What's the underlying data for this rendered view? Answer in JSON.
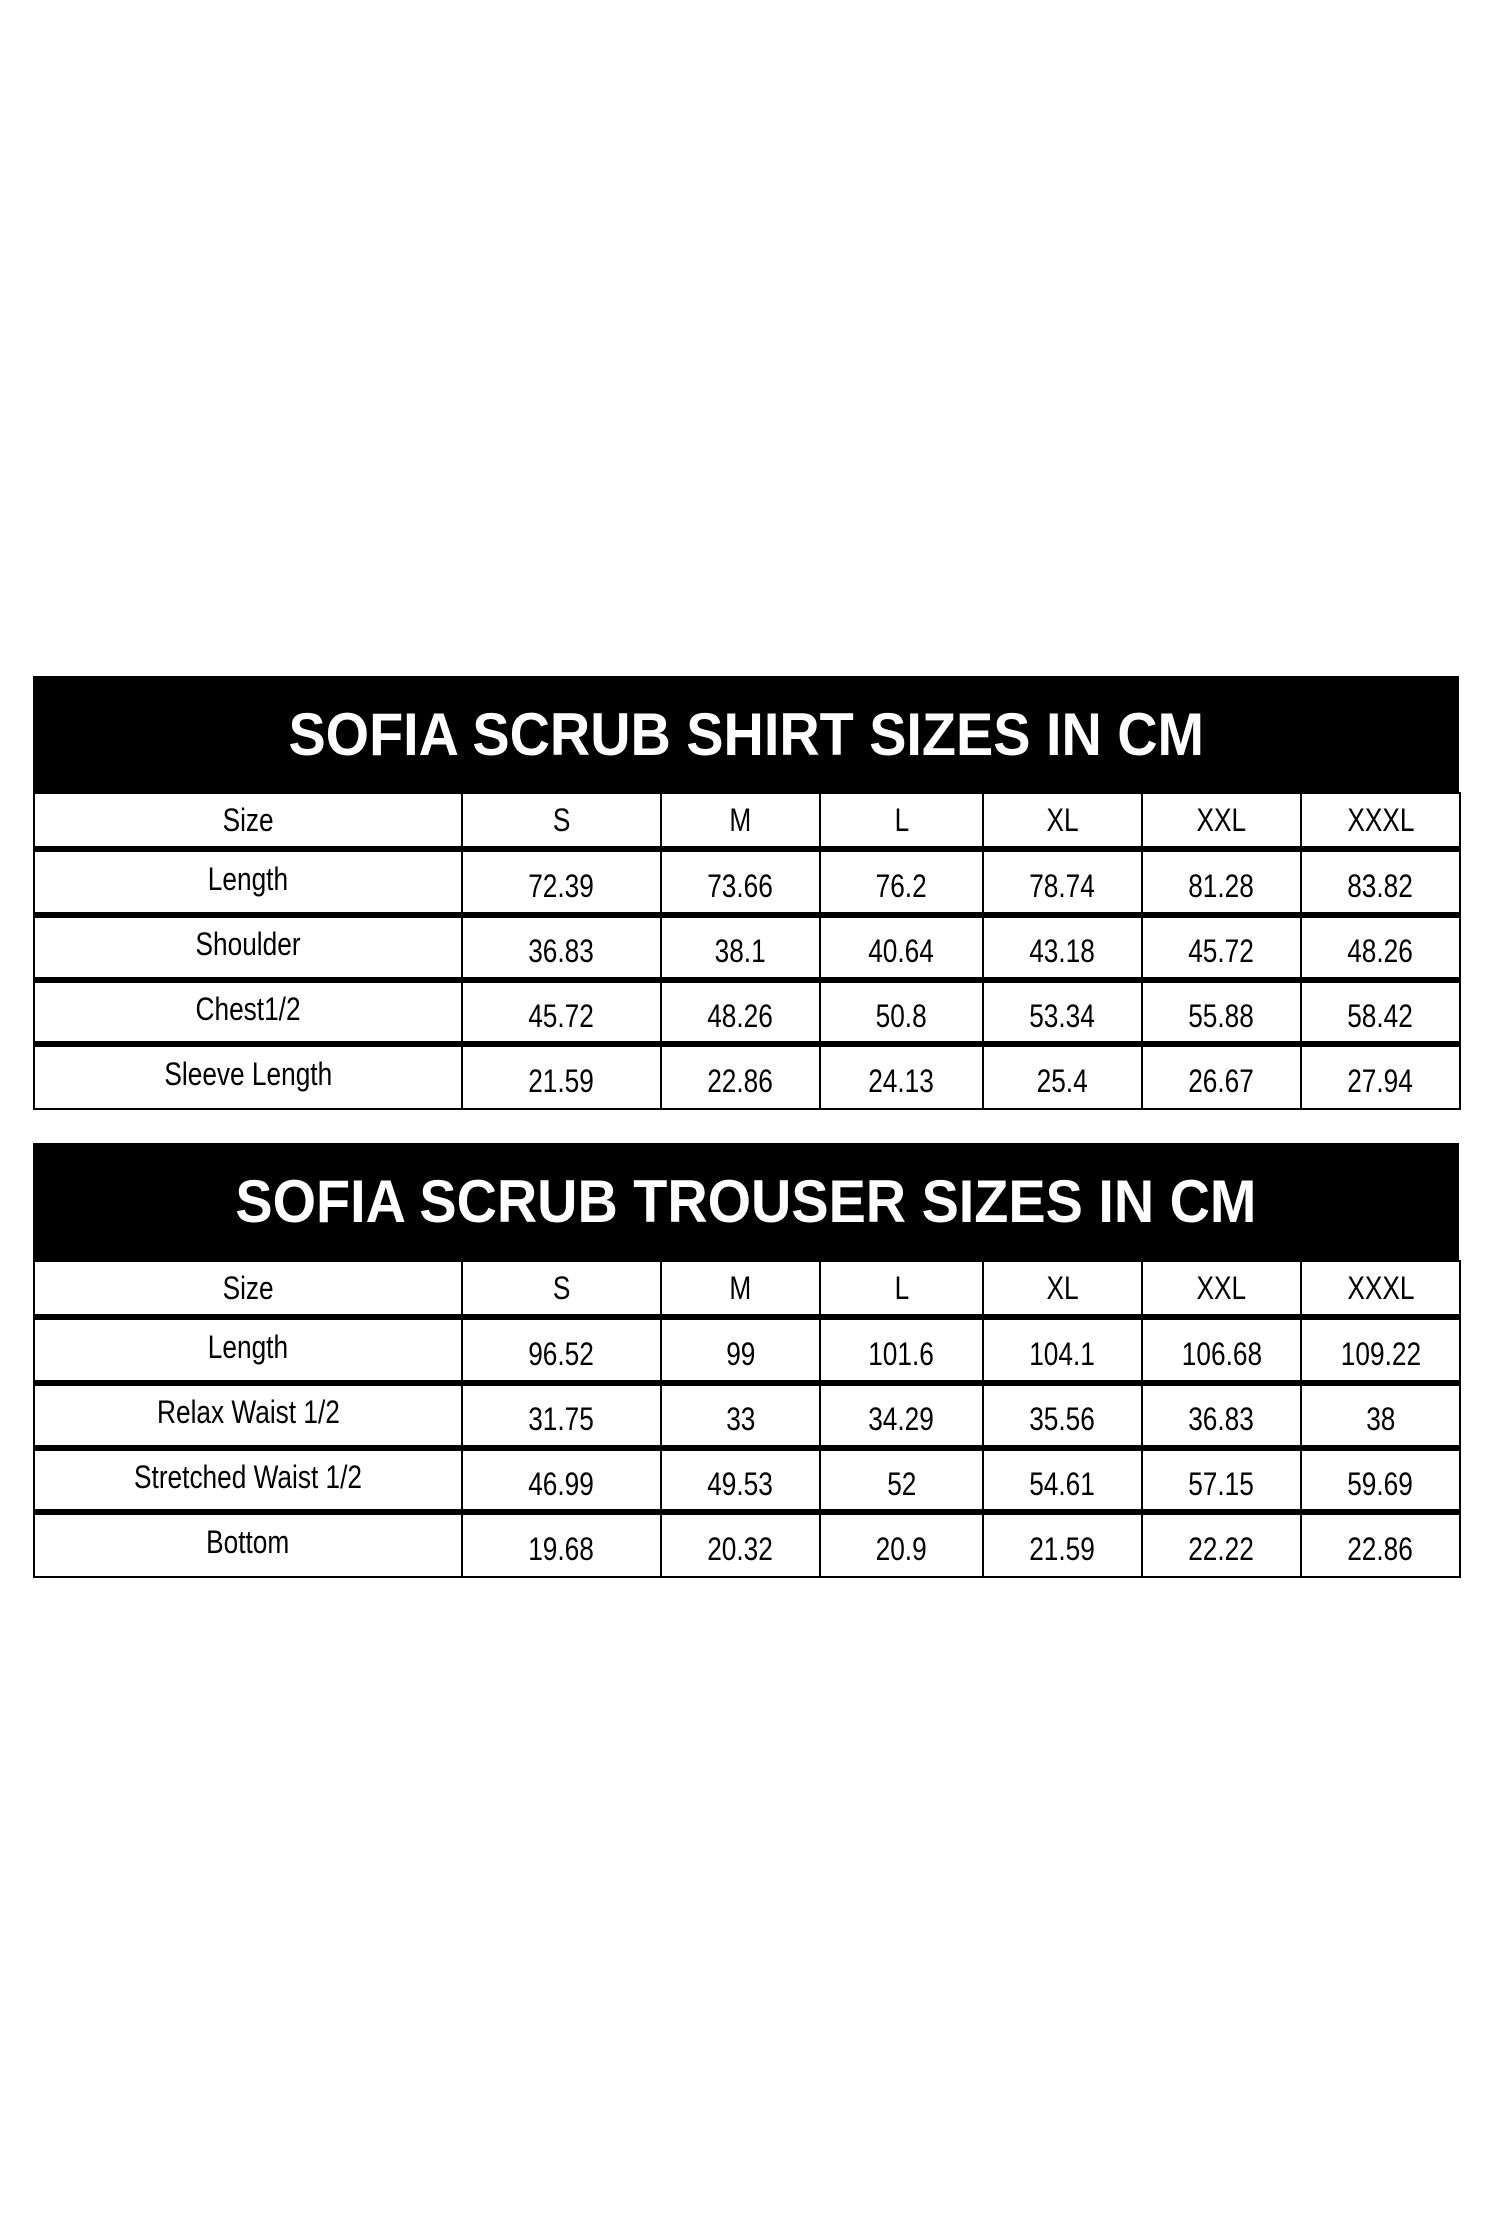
{
  "shirt": {
    "title": "SOFIA SCRUB SHIRT SIZES IN CM",
    "header": [
      "Size",
      "S",
      "M",
      "L",
      "XL",
      "XXL",
      "XXXL"
    ],
    "rows": [
      {
        "label": "Length",
        "values": [
          "72.39",
          "73.66",
          "76.2",
          "78.74",
          "81.28",
          "83.82"
        ]
      },
      {
        "label": "Shoulder",
        "values": [
          "36.83",
          "38.1",
          "40.64",
          "43.18",
          "45.72",
          "48.26"
        ]
      },
      {
        "label": "Chest1/2",
        "values": [
          "45.72",
          "48.26",
          "50.8",
          "53.34",
          "55.88",
          "58.42"
        ]
      },
      {
        "label": "Sleeve Length",
        "values": [
          "21.59",
          "22.86",
          "24.13",
          "25.4",
          "26.67",
          "27.94"
        ]
      }
    ]
  },
  "trouser": {
    "title": "SOFIA SCRUB TROUSER SIZES IN CM",
    "header": [
      "Size",
      "S",
      "M",
      "L",
      "XL",
      "XXL",
      "XXXL"
    ],
    "rows": [
      {
        "label": "Length",
        "values": [
          "96.52",
          "99",
          "101.6",
          "104.1",
          "106.68",
          "109.22"
        ]
      },
      {
        "label": "Relax Waist 1/2",
        "values": [
          "31.75",
          "33",
          "34.29",
          "35.56",
          "36.83",
          "38"
        ]
      },
      {
        "label": "Stretched Waist 1/2",
        "values": [
          "46.99",
          "49.53",
          "52",
          "54.61",
          "57.15",
          "59.69"
        ]
      },
      {
        "label": "Bottom",
        "values": [
          "19.68",
          "20.32",
          "20.9",
          "21.59",
          "22.22",
          "22.86"
        ]
      }
    ]
  }
}
